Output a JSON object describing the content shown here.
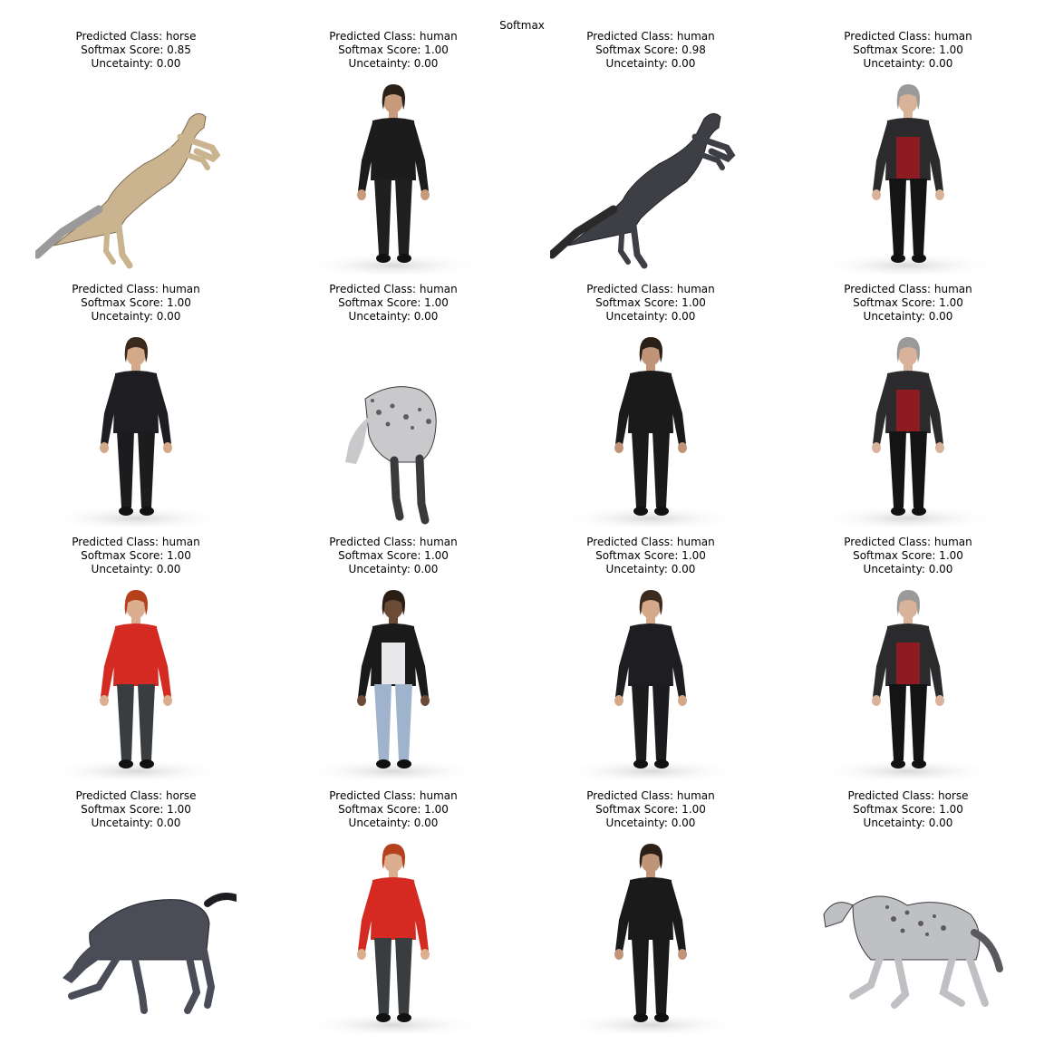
{
  "suptitle": "Softmax",
  "panels": [
    {
      "class_line": "Predicted Class: horse",
      "score_line": "Softmax Score: 0.85",
      "uncert_line": "Uncetainty: 0.00",
      "subject": "horse",
      "pose": "rearing",
      "palette": {
        "coat": "#c9b48f",
        "dark": "#7d6b50",
        "mane": "#9a9a9a"
      }
    },
    {
      "class_line": "Predicted Class: human",
      "score_line": "Softmax Score: 1.00",
      "uncert_line": "Uncetainty: 0.00",
      "subject": "human",
      "palette": {
        "top": "#1c1c1c",
        "legs": "#1f1f1f",
        "skin": "#c79a7c",
        "hair": "#2a2018"
      }
    },
    {
      "class_line": "Predicted Class: human",
      "score_line": "Softmax Score: 0.98",
      "uncert_line": "Uncetainty: 0.00",
      "subject": "horse",
      "pose": "rearing",
      "palette": {
        "coat": "#3d3f45",
        "dark": "#202226",
        "mane": "#2a2a2a"
      }
    },
    {
      "class_line": "Predicted Class: human",
      "score_line": "Softmax Score: 1.00",
      "uncert_line": "Uncetainty: 0.00",
      "subject": "human",
      "palette": {
        "top": "#2b2b2e",
        "legs": "#141414",
        "skin": "#d9b29a",
        "hair": "#9a9a9a",
        "accent": "#8e1b22"
      }
    },
    {
      "class_line": "Predicted Class: human",
      "score_line": "Softmax Score: 1.00",
      "uncert_line": "Uncetainty: 0.00",
      "subject": "human",
      "palette": {
        "top": "#1e1e22",
        "legs": "#1c1c1f",
        "skin": "#d4a98a",
        "hair": "#3b2a1e"
      }
    },
    {
      "class_line": "Predicted Class: human",
      "score_line": "Softmax Score: 1.00",
      "uncert_line": "Uncetainty: 0.00",
      "subject": "horse",
      "pose": "head-down",
      "palette": {
        "coat": "#c9c9cc",
        "dark": "#3a3a3d",
        "mane": "#2e2e30"
      }
    },
    {
      "class_line": "Predicted Class: human",
      "score_line": "Softmax Score: 1.00",
      "uncert_line": "Uncetainty: 0.00",
      "subject": "human",
      "palette": {
        "top": "#1a1a1a",
        "legs": "#1a1a1a",
        "skin": "#c09478",
        "hair": "#2a2018"
      }
    },
    {
      "class_line": "Predicted Class: human",
      "score_line": "Softmax Score: 1.00",
      "uncert_line": "Uncetainty: 0.00",
      "subject": "human",
      "palette": {
        "top": "#2b2b2e",
        "legs": "#141414",
        "skin": "#d9b29a",
        "hair": "#9a9a9a",
        "accent": "#8e1b22"
      }
    },
    {
      "class_line": "Predicted Class: human",
      "score_line": "Softmax Score: 1.00",
      "uncert_line": "Uncetainty: 0.00",
      "subject": "human",
      "palette": {
        "top": "#d42a22",
        "legs": "#3a3d3f",
        "skin": "#dcae90",
        "hair": "#b5401c"
      }
    },
    {
      "class_line": "Predicted Class: human",
      "score_line": "Softmax Score: 1.00",
      "uncert_line": "Uncetainty: 0.00",
      "subject": "human",
      "palette": {
        "top": "#1a1a1a",
        "legs": "#9fb3cc",
        "skin": "#6b4a36",
        "hair": "#2a1d14",
        "accent": "#e8e8ea"
      }
    },
    {
      "class_line": "Predicted Class: human",
      "score_line": "Softmax Score: 1.00",
      "uncert_line": "Uncetainty: 0.00",
      "subject": "human",
      "palette": {
        "top": "#1e1e22",
        "legs": "#1c1c1f",
        "skin": "#d4a98a",
        "hair": "#3b2a1e"
      }
    },
    {
      "class_line": "Predicted Class: human",
      "score_line": "Softmax Score: 1.00",
      "uncert_line": "Uncetainty: 0.00",
      "subject": "human",
      "palette": {
        "top": "#2b2b2e",
        "legs": "#141414",
        "skin": "#d9b29a",
        "hair": "#9a9a9a",
        "accent": "#8e1b22"
      }
    },
    {
      "class_line": "Predicted Class: horse",
      "score_line": "Softmax Score: 1.00",
      "uncert_line": "Uncetainty: 0.00",
      "subject": "horse",
      "pose": "grazing",
      "palette": {
        "coat": "#4a4c57",
        "dark": "#24252b",
        "mane": "#1e1e22"
      }
    },
    {
      "class_line": "Predicted Class: human",
      "score_line": "Softmax Score: 1.00",
      "uncert_line": "Uncetainty: 0.00",
      "subject": "human",
      "palette": {
        "top": "#d42a22",
        "legs": "#3a3d3f",
        "skin": "#dcae90",
        "hair": "#b5401c"
      }
    },
    {
      "class_line": "Predicted Class: human",
      "score_line": "Softmax Score: 1.00",
      "uncert_line": "Uncetainty: 0.00",
      "subject": "human",
      "palette": {
        "top": "#1a1a1a",
        "legs": "#1a1a1a",
        "skin": "#c09478",
        "hair": "#2a2018"
      }
    },
    {
      "class_line": "Predicted Class: horse",
      "score_line": "Softmax Score: 1.00",
      "uncert_line": "Uncetainty: 0.00",
      "subject": "horse",
      "pose": "galloping",
      "palette": {
        "coat": "#bfc0c4",
        "dark": "#3a3a3d",
        "mane": "#5a5a5e"
      }
    }
  ]
}
